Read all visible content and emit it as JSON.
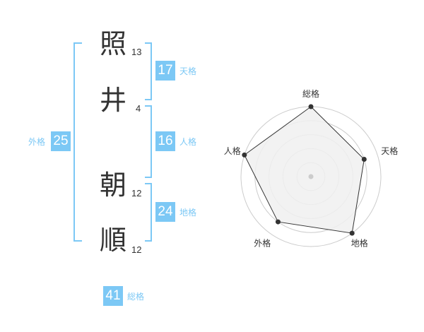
{
  "name_chars": [
    {
      "char": "照",
      "strokes": "13"
    },
    {
      "char": "井",
      "strokes": "4"
    },
    {
      "char": "朝",
      "strokes": "12"
    },
    {
      "char": "順",
      "strokes": "12"
    }
  ],
  "fortunes": {
    "tenkaku": {
      "value": "17",
      "label": "天格"
    },
    "jinkaku": {
      "value": "16",
      "label": "人格"
    },
    "chikaku": {
      "value": "24",
      "label": "地格"
    },
    "gaikaku": {
      "value": "25",
      "label": "外格"
    },
    "soukaku": {
      "value": "41",
      "label": "総格"
    }
  },
  "colors": {
    "accent": "#7cc8f5",
    "text": "#333333",
    "radar_fill": "#f0f0f0",
    "grid": "#cccccc"
  },
  "chart_data": {
    "type": "radar",
    "axes": [
      "総格",
      "天格",
      "地格",
      "外格",
      "人格"
    ],
    "values": [
      5,
      4,
      5,
      4,
      5
    ],
    "range": [
      0,
      5
    ],
    "rings": 5
  }
}
